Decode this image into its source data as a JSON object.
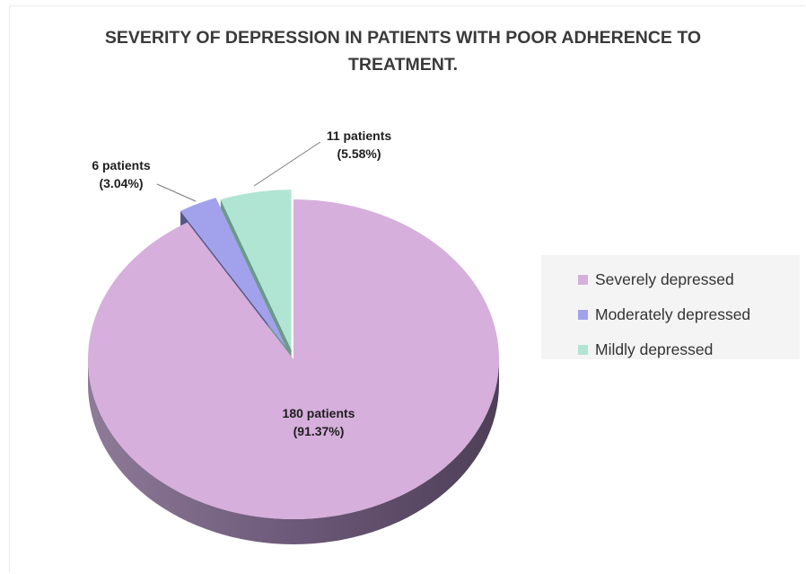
{
  "chart_data": {
    "type": "pie",
    "title": "SEVERITY OF DEPRESSION IN PATIENTS WITH POOR ADHERENCE TO TREATMENT.",
    "slices": [
      {
        "label": "Severely depressed",
        "value": 180,
        "percent": 91.37,
        "count_label": "180 patients",
        "percent_label": "(91.37%)",
        "color": "#d6afdc",
        "side_color": "#6f5a79"
      },
      {
        "label": "Moderately depressed",
        "value": 6,
        "percent": 3.04,
        "count_label": "6 patients",
        "percent_label": "(3.04%)",
        "color": "#a2a2ec",
        "side_color": "#55558a"
      },
      {
        "label": "Mildly depressed",
        "value": 11,
        "percent": 5.58,
        "count_label": "11 patients",
        "percent_label": "(5.58%)",
        "color": "#b0e5d3",
        "side_color": "#6a9a8a"
      }
    ],
    "legend_position": "right",
    "style": "3D pie with exploded small slices"
  }
}
